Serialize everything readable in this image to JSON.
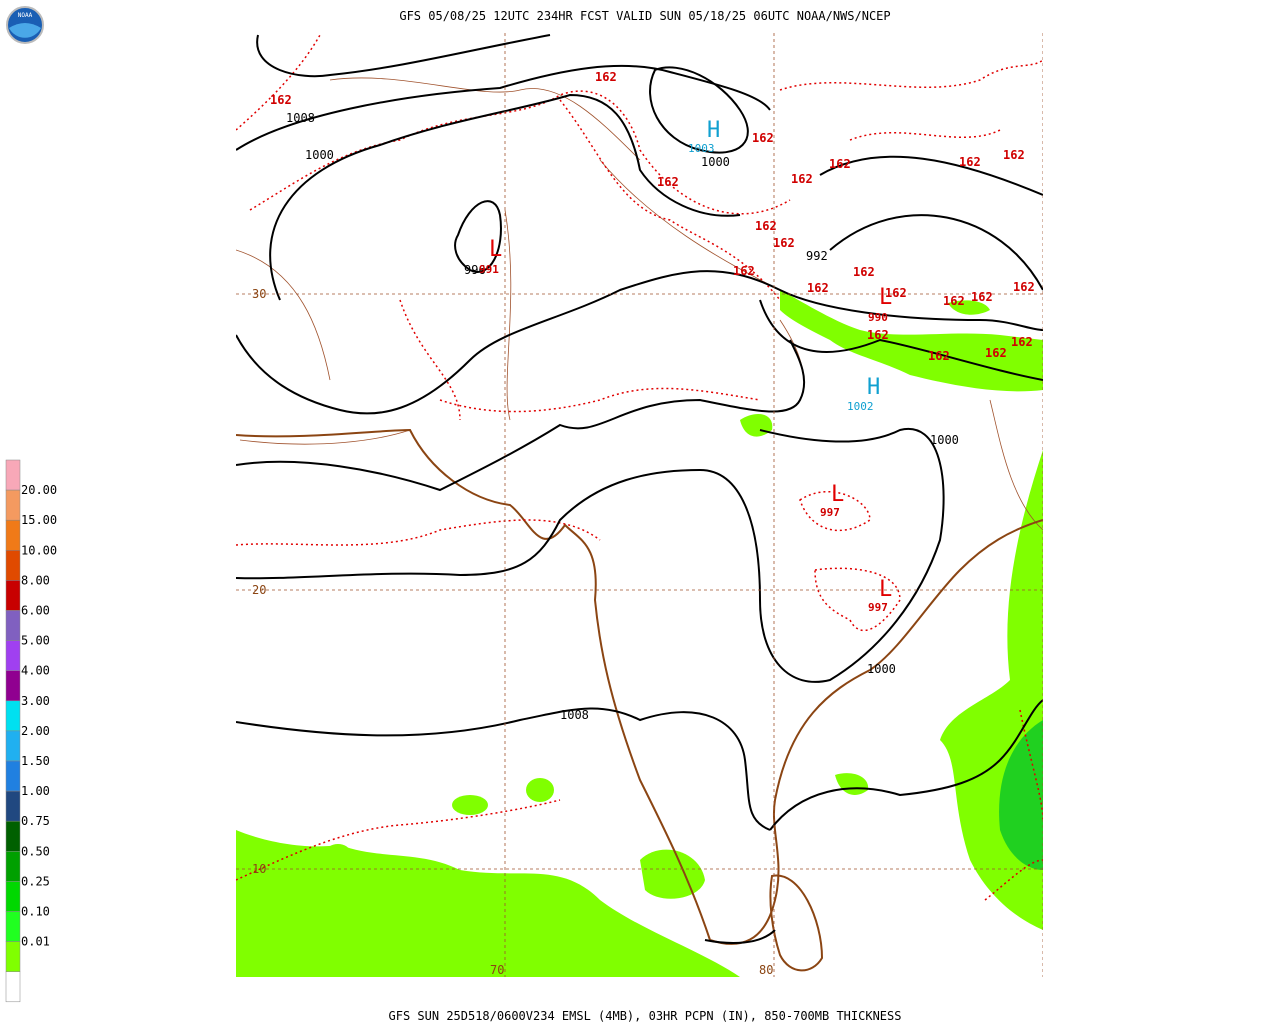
{
  "header": {
    "title": "GFS 05/08/25 12UTC 234HR FCST VALID SUN 05/18/25 06UTC NOAA/NWS/NCEP",
    "logo": "NOAA"
  },
  "footer": {
    "caption": "GFS SUN 25D518/0600V234 EMSL (4MB), 03HR PCPN (IN), 850-700MB THICKNESS"
  },
  "legend": {
    "labels": [
      "20.00",
      "15.00",
      "10.00",
      "8.00",
      "6.00",
      "5.00",
      "4.00",
      "3.00",
      "2.00",
      "1.50",
      "1.00",
      "0.75",
      "0.50",
      "0.25",
      "0.10",
      "0.01"
    ],
    "colors": [
      "#f8a8b8",
      "#f49a60",
      "#f07a18",
      "#e04a00",
      "#c80000",
      "#8060c0",
      "#a040f0",
      "#900090",
      "#00e0f0",
      "#20b0f0",
      "#2080e0",
      "#204880",
      "#006000",
      "#00a000",
      "#00d800",
      "#20ff20",
      "#80ff00",
      "#ffffff"
    ]
  },
  "grid": {
    "lat_labels": [
      "30",
      "20",
      "10"
    ],
    "lon_labels": [
      "70",
      "80"
    ]
  },
  "map_labels": {
    "isobars": [
      "1008",
      "1000",
      "1000",
      "992",
      "1000",
      "1000",
      "1008",
      "996"
    ],
    "thickness": [
      "162",
      "162",
      "162",
      "162",
      "162",
      "162",
      "162",
      "162",
      "162",
      "162",
      "162",
      "162",
      "162",
      "162",
      "162",
      "162",
      "162",
      "162",
      "162",
      "162",
      "162"
    ],
    "highs": {
      "symbols": [
        "H",
        "H"
      ],
      "values": [
        "1003",
        "1002"
      ]
    },
    "lows": {
      "symbols": [
        "L",
        "L",
        "L",
        "L"
      ],
      "values": [
        "991",
        "990",
        "997",
        "997"
      ]
    }
  }
}
